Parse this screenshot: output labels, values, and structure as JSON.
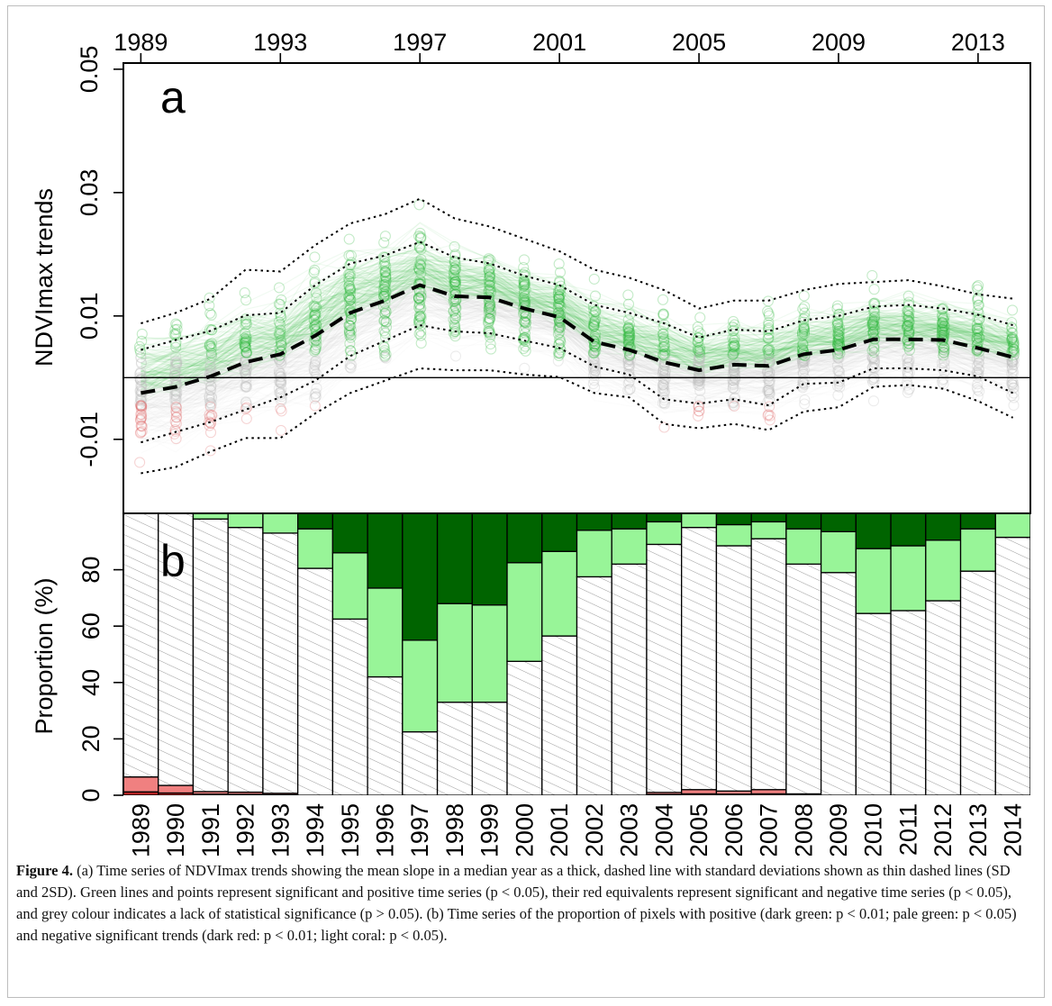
{
  "chart_data": [
    {
      "panel": "a",
      "type": "line",
      "ylabel": "NDVImax trends",
      "top_axis_ticks": [
        "1989",
        "1993",
        "1997",
        "2001",
        "2005",
        "2009",
        "2013"
      ],
      "y_ticks": [
        "-0.01",
        "0.01",
        "0.03",
        "0.05"
      ],
      "ylim": [
        -0.022,
        0.051
      ],
      "x": [
        1989,
        1990,
        1991,
        1992,
        1993,
        1994,
        1995,
        1996,
        1997,
        1998,
        1999,
        2000,
        2001,
        2002,
        2003,
        2004,
        2005,
        2006,
        2007,
        2008,
        2009,
        2010,
        2011,
        2012,
        2013,
        2014
      ],
      "series": [
        {
          "values": [
            -0.0025,
            -0.0015,
            0.0002,
            0.0025,
            0.0038,
            0.0068,
            0.0105,
            0.0125,
            0.015,
            0.0132,
            0.013,
            0.0112,
            0.0098,
            0.0058,
            0.0045,
            0.0025,
            0.0012,
            0.0021,
            0.0019,
            0.0038,
            0.0045,
            0.0062,
            0.0062,
            0.0061,
            0.0048,
            0.0033
          ]
        },
        {
          "values": [
            0.0045,
            0.0061,
            0.0076,
            0.0101,
            0.0105,
            0.015,
            0.0185,
            0.0198,
            0.022,
            0.0195,
            0.0185,
            0.0165,
            0.015,
            0.0118,
            0.0105,
            0.0088,
            0.0065,
            0.0078,
            0.0075,
            0.0093,
            0.01,
            0.0115,
            0.0118,
            0.0112,
            0.0102,
            0.0085
          ]
        },
        {
          "values": [
            0.0088,
            0.0105,
            0.0128,
            0.0175,
            0.0172,
            0.0215,
            0.025,
            0.0265,
            0.029,
            0.0258,
            0.0245,
            0.0225,
            0.0205,
            0.0175,
            0.0162,
            0.0142,
            0.0112,
            0.0125,
            0.0125,
            0.0142,
            0.0152,
            0.0155,
            0.0158,
            0.0148,
            0.0135,
            0.0128
          ]
        },
        {
          "values": [
            -0.0105,
            -0.0088,
            -0.0072,
            -0.0052,
            -0.0032,
            -0.0005,
            0.0035,
            0.006,
            0.0085,
            0.0075,
            0.0072,
            0.006,
            0.0048,
            0.0018,
            0.0005,
            -0.0035,
            -0.0042,
            -0.0035,
            -0.0045,
            -0.001,
            -0.0008,
            0.0015,
            0.0015,
            0.0012,
            0.0002,
            -0.0025
          ]
        },
        {
          "values": [
            -0.0155,
            -0.0145,
            -0.012,
            -0.0098,
            -0.0098,
            -0.0058,
            -0.0025,
            -0.0005,
            0.0015,
            0.0012,
            0.0012,
            0.0005,
            0.0001,
            -0.0025,
            -0.0032,
            -0.0075,
            -0.0082,
            -0.0075,
            -0.0085,
            -0.0055,
            -0.0048,
            -0.0015,
            -0.0012,
            -0.0018,
            -0.0038,
            -0.0065
          ]
        }
      ],
      "sig_positive_color": "#2db83d",
      "sig_negative_color": "#e06666",
      "nonsig_color": "#bbbbbb"
    },
    {
      "panel": "b",
      "type": "bar",
      "ylabel": "Proportion (%)",
      "y_ticks": [
        "0",
        "20",
        "40",
        "60",
        "80"
      ],
      "ylim": [
        0,
        100
      ],
      "categories": [
        "1989",
        "1990",
        "1991",
        "1992",
        "1993",
        "1994",
        "1995",
        "1996",
        "1997",
        "1998",
        "1999",
        "2000",
        "2001",
        "2002",
        "2003",
        "2004",
        "2005",
        "2006",
        "2007",
        "2008",
        "2009",
        "2010",
        "2011",
        "2012",
        "2013",
        "2014"
      ],
      "stack_order": [
        "dark_red",
        "light_coral",
        "not_significant",
        "pale_green",
        "dark_green"
      ],
      "dark_red": [
        1.2,
        0.8,
        0.4,
        0.3,
        0.2,
        0,
        0,
        0,
        0,
        0,
        0,
        0,
        0,
        0,
        0,
        0.3,
        0.5,
        0.4,
        0.5,
        0.2,
        0,
        0,
        0,
        0,
        0,
        0
      ],
      "light_coral": [
        5.3,
        2.7,
        0.9,
        0.8,
        0.5,
        0,
        0,
        0,
        0,
        0,
        0,
        0,
        0,
        0,
        0,
        0.7,
        1.5,
        1.1,
        1.5,
        0.3,
        0,
        0,
        0,
        0,
        0,
        0
      ],
      "pale_green": [
        0,
        0,
        2,
        5,
        7,
        14,
        23.5,
        31.5,
        32.5,
        35,
        34.5,
        35,
        30,
        16.5,
        12.5,
        8,
        5,
        7.5,
        6,
        12.5,
        14.5,
        23,
        23,
        21.5,
        15,
        8.5
      ],
      "dark_green": [
        0,
        0,
        0,
        0,
        0,
        5.5,
        14,
        26.5,
        45,
        32,
        32.5,
        17.5,
        13.5,
        6,
        5.5,
        3,
        0,
        4,
        3,
        5.5,
        6.5,
        12.5,
        11.5,
        9.5,
        5.5,
        0
      ],
      "colors": {
        "dark_red": "#b22222",
        "light_coral": "#f08080",
        "pale_green": "#98f598",
        "dark_green": "#006400",
        "not_significant": "#ffffff"
      }
    }
  ],
  "panel_labels": {
    "a": "a",
    "b": "b"
  },
  "caption": {
    "label": "Figure 4.",
    "text": "(a) Time series of NDVImax trends showing the mean slope in a median year as a thick, dashed line with standard deviations shown as thin dashed lines (SD and 2SD). Green lines and points represent significant and positive time series (p < 0.05), their red equivalents represent significant and negative time series (p < 0.05), and grey colour indicates a lack of statistical significance (p > 0.05). (b) Time series of the proportion of pixels with positive (dark green: p < 0.01; pale green: p < 0.05) and negative significant trends (dark red: p < 0.01; light coral: p < 0.05)."
  }
}
